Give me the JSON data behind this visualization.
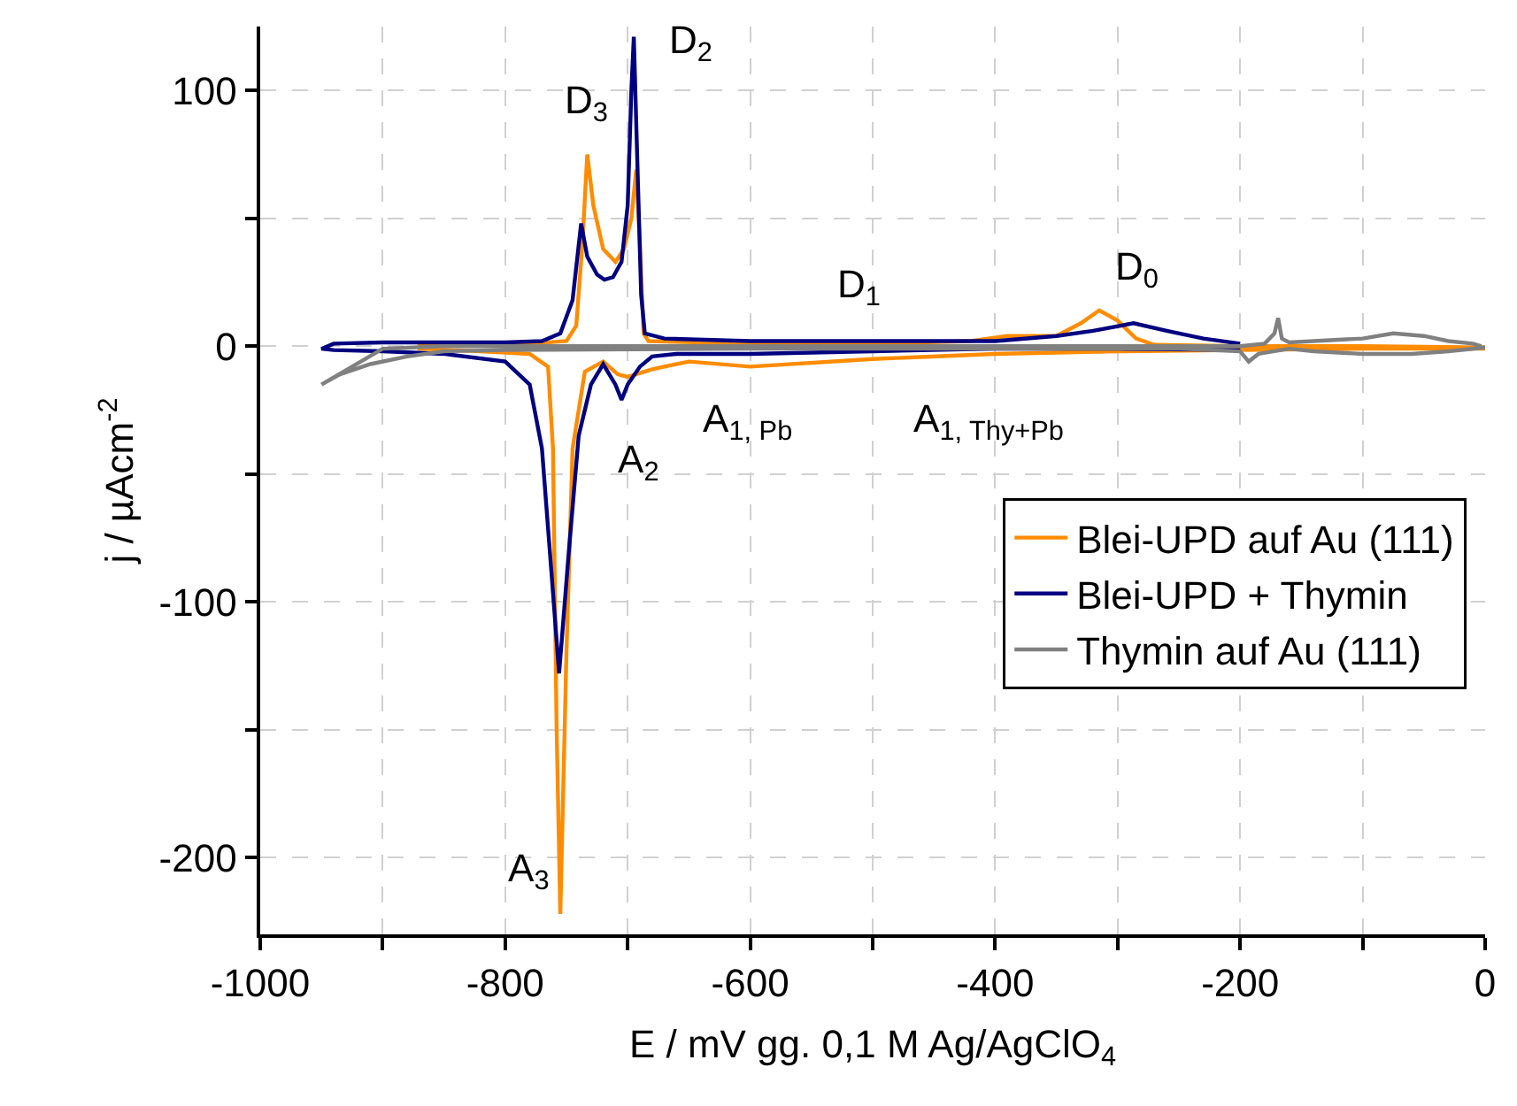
{
  "chart_data": {
    "type": "line",
    "xlabel": "E / mV gg. 0,1 M Ag/AgClO$_{4}$",
    "ylabel": "j / µAcm$^{-2}$",
    "xlim": [
      -1000,
      0
    ],
    "xticks": [
      -1000,
      {
        "value": -900,
        "label": null
      },
      -800,
      {
        "value": -700,
        "label": null
      },
      -600,
      {
        "value": -500,
        "label": null
      },
      -400,
      {
        "value": -300,
        "label": null
      },
      -200,
      {
        "value": -100,
        "label": null
      },
      0
    ],
    "ylim": [
      -230,
      125
    ],
    "yticks": [
      {
        "value": -200,
        "label": "-200"
      },
      {
        "value": -150,
        "label": null
      },
      {
        "value": -100,
        "label": "-100"
      },
      {
        "value": -50,
        "label": null
      },
      0,
      {
        "value": 50,
        "label": null
      },
      100
    ],
    "grid": true,
    "legend": "bottom right",
    "line_style": "solid",
    "marker": "none",
    "series": [
      {
        "name": "Blei-UPD auf Au (111)",
        "color": "#ff8c00",
        "x": [
          0,
          -100,
          -200,
          -300,
          -400,
          -500,
          -600,
          -650,
          -680,
          -700,
          -708,
          -720,
          -735,
          -745,
          -750,
          -755,
          -758,
          -761,
          -765,
          -780,
          -820,
          -870,
          -870,
          -820,
          -780,
          -750,
          -742,
          -737,
          -733,
          -728,
          -720,
          -710,
          -703,
          -697,
          -693,
          -690,
          -687,
          -683,
          -600,
          -500,
          -420,
          -390,
          -350,
          -330,
          -315,
          -300,
          -285,
          -270,
          -200,
          -100,
          0
        ],
        "values": [
          -1,
          -1,
          -1.5,
          -2,
          -3,
          -5,
          -8,
          -6,
          -9,
          -12,
          -11,
          -6,
          -10,
          -40,
          -120,
          -222,
          -150,
          -40,
          -8,
          -3,
          -2,
          -1,
          0,
          0.5,
          1,
          2,
          8,
          40,
          75,
          55,
          38,
          33,
          38,
          50,
          69,
          40,
          5,
          2,
          1,
          1,
          2,
          4,
          4,
          9,
          14,
          10,
          3,
          0.5,
          0,
          0,
          -0.5
        ]
      },
      {
        "name": "Blei-UPD + Thymin",
        "color": "#000080",
        "x": [
          -200,
          -300,
          -400,
          -500,
          -600,
          -660,
          -680,
          -690,
          -700,
          -705,
          -710,
          -720,
          -730,
          -740,
          -748,
          -756,
          -762,
          -770,
          -780,
          -800,
          -850,
          -900,
          -940,
          -950,
          -940,
          -900,
          -850,
          -800,
          -770,
          -755,
          -745,
          -738,
          -733,
          -725,
          -719,
          -712,
          -705,
          -700,
          -697,
          -695,
          -692,
          -689,
          -686,
          -670,
          -600,
          -500,
          -400,
          -350,
          -320,
          -287,
          -260,
          -230,
          -200
        ],
        "values": [
          -1.5,
          -1,
          -1,
          -2,
          -3,
          -3,
          -4,
          -8,
          -15,
          -21,
          -15,
          -7,
          -15,
          -35,
          -80,
          -128,
          -90,
          -40,
          -15,
          -6,
          -3,
          -2,
          -1.5,
          -1,
          1,
          1.5,
          1.5,
          1.5,
          2,
          5,
          18,
          48,
          35,
          28,
          26,
          27,
          33,
          55,
          100,
          121,
          70,
          20,
          5,
          3,
          2,
          2,
          2,
          4,
          6,
          9,
          6,
          3,
          1
        ]
      },
      {
        "name": "Thymin auf Au (111)",
        "color": "#808080",
        "x": [
          0,
          -30,
          -60,
          -100,
          -140,
          -160,
          -185,
          -193,
          -200,
          -250,
          -400,
          -600,
          -800,
          -850,
          -880,
          -910,
          -935,
          -950,
          -900,
          -850,
          -700,
          -500,
          -300,
          -200,
          -180,
          -172,
          -169,
          -166,
          -160,
          -120,
          -100,
          -75,
          -50,
          -30,
          -10,
          -3
        ],
        "values": [
          -0.5,
          -2,
          -3,
          -3,
          -2,
          -1,
          -3,
          -6,
          -2,
          -1,
          -1,
          -1,
          -1.5,
          -2,
          -4,
          -7,
          -11,
          -15,
          -1,
          0,
          0,
          0,
          0,
          0,
          1,
          5,
          11,
          3,
          1.5,
          2.5,
          3,
          5,
          4,
          2,
          1,
          0
        ]
      }
    ],
    "annotations": [
      "D$_{3}$",
      "D$_{2}$",
      "D$_{1}$",
      "D$_{0}$",
      "A$_{1, Pb}$",
      "A$_{1, Thy+Pb}$",
      "A$_{2}$",
      "A$_{3}$"
    ]
  }
}
